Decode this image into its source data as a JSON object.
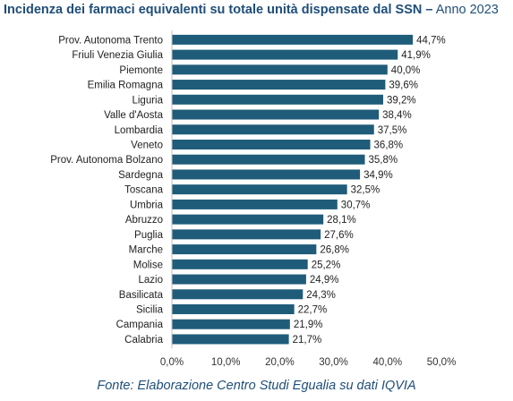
{
  "title": {
    "bold": "Incidenza dei farmaci equivalenti su totale unità dispensate dal SSN",
    "separator": "–",
    "normal": "Anno 2023"
  },
  "source": "Fonte: Elaborazione Centro Studi Egualia su dati IQVIA",
  "colors": {
    "bar": "#1f5c7a",
    "title": "#1f4e79"
  },
  "chart_data": {
    "type": "bar",
    "orientation": "horizontal",
    "title": "Incidenza dei farmaci equivalenti su totale unità dispensate dal SSN – Anno 2023",
    "categories": [
      "Prov. Autonoma Trento",
      "Friuli Venezia Giulia",
      "Piemonte",
      "Emilia Romagna",
      "Liguria",
      "Valle d'Aosta",
      "Lombardia",
      "Veneto",
      "Prov. Autonoma Bolzano",
      "Sardegna",
      "Toscana",
      "Umbria",
      "Abruzzo",
      "Puglia",
      "Marche",
      "Molise",
      "Lazio",
      "Basilicata",
      "Sicilia",
      "Campania",
      "Calabria"
    ],
    "values": [
      44.7,
      41.9,
      40.0,
      39.6,
      39.2,
      38.4,
      37.5,
      36.8,
      35.8,
      34.9,
      32.5,
      30.7,
      28.1,
      27.6,
      26.8,
      25.2,
      24.9,
      24.3,
      22.7,
      21.9,
      21.7
    ],
    "value_labels": [
      "44,7%",
      "41,9%",
      "40,0%",
      "39,6%",
      "39,2%",
      "38,4%",
      "37,5%",
      "36,8%",
      "35,8%",
      "34,9%",
      "32,5%",
      "30,7%",
      "28,1%",
      "27,6%",
      "26,8%",
      "25,2%",
      "24,9%",
      "24,3%",
      "22,7%",
      "21,9%",
      "21,7%"
    ],
    "xlim": [
      0,
      50
    ],
    "x_ticks": [
      0,
      10,
      20,
      30,
      40,
      50
    ],
    "x_tick_labels": [
      "0,0%",
      "10,0%",
      "20,0%",
      "30,0%",
      "40,0%",
      "50,0%"
    ],
    "grid": false,
    "legend": "none"
  }
}
